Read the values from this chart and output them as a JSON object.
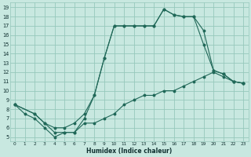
{
  "xlabel": "Humidex (Indice chaleur)",
  "bg_color": "#c8e8e0",
  "grid_color": "#96c8bc",
  "line_color": "#206858",
  "xlim": [
    -0.5,
    23.5
  ],
  "ylim": [
    4.5,
    19.5
  ],
  "xticks": [
    0,
    1,
    2,
    3,
    4,
    5,
    6,
    7,
    8,
    9,
    10,
    11,
    12,
    13,
    14,
    15,
    16,
    17,
    18,
    19,
    20,
    21,
    22,
    23
  ],
  "yticks": [
    5,
    6,
    7,
    8,
    9,
    10,
    11,
    12,
    13,
    14,
    15,
    16,
    17,
    18,
    19
  ],
  "line1_x": [
    0,
    1,
    2,
    3,
    4,
    5,
    6,
    7,
    8,
    9,
    10,
    11,
    12,
    13,
    14,
    15,
    16,
    17,
    18,
    19,
    20,
    21,
    22,
    23
  ],
  "line1_y": [
    8.5,
    7.5,
    7.0,
    6.0,
    5.0,
    5.5,
    5.5,
    7.0,
    9.5,
    13.5,
    17.0,
    17.0,
    17.0,
    17.0,
    17.0,
    18.8,
    18.2,
    18.0,
    18.0,
    16.5,
    12.2,
    11.8,
    11.0,
    10.8
  ],
  "line2_x": [
    0,
    2,
    3,
    4,
    5,
    6,
    7,
    8,
    9,
    10,
    11,
    12,
    13,
    14,
    15,
    16,
    17,
    18,
    19,
    20,
    21,
    22,
    23
  ],
  "line2_y": [
    8.5,
    7.5,
    6.5,
    6.0,
    6.0,
    6.5,
    7.5,
    9.5,
    13.5,
    17.0,
    17.0,
    17.0,
    17.0,
    17.0,
    18.8,
    18.2,
    18.0,
    18.0,
    15.0,
    12.2,
    11.8,
    11.0,
    10.8
  ],
  "line3_x": [
    0,
    2,
    3,
    4,
    5,
    6,
    7,
    8,
    9,
    10,
    11,
    12,
    13,
    14,
    15,
    16,
    17,
    18,
    19,
    20,
    21,
    22,
    23
  ],
  "line3_y": [
    8.5,
    7.5,
    6.5,
    5.5,
    5.5,
    5.5,
    6.5,
    6.5,
    7.0,
    7.5,
    8.5,
    9.0,
    9.5,
    9.5,
    10.0,
    10.0,
    10.5,
    11.0,
    11.5,
    12.0,
    11.5,
    11.0,
    10.8
  ]
}
